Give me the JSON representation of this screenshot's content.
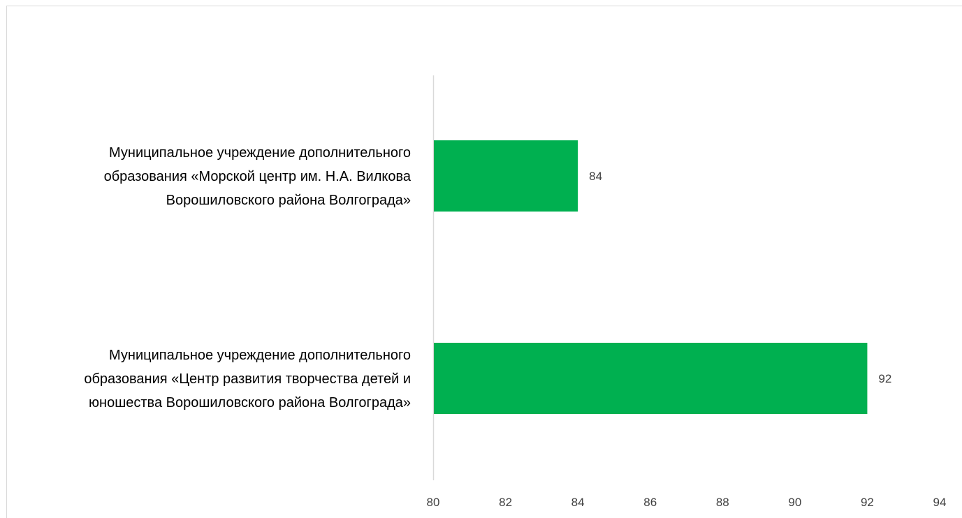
{
  "chart_data": {
    "type": "bar",
    "orientation": "horizontal",
    "categories": [
      [
        "Муниципальное учреждение дополнительного",
        "образования «Морской центр им. Н.А. Вилкова",
        "Ворошиловского района Волгограда»"
      ],
      [
        "Муниципальное учреждение дополнительного",
        "образования «Центр развития творчества детей и",
        "юношества Ворошиловского района Волгограда»"
      ]
    ],
    "values": [
      84,
      92
    ],
    "data_labels": [
      "84",
      "92"
    ],
    "xlim": [
      80,
      94
    ],
    "x_ticks": [
      "80",
      "82",
      "84",
      "86",
      "88",
      "90",
      "92",
      "94"
    ],
    "title": "",
    "xlabel": "",
    "ylabel": "",
    "grid": false,
    "legend": "none",
    "bar_color": "#00b050",
    "axis_color": "#d9d9d9"
  }
}
